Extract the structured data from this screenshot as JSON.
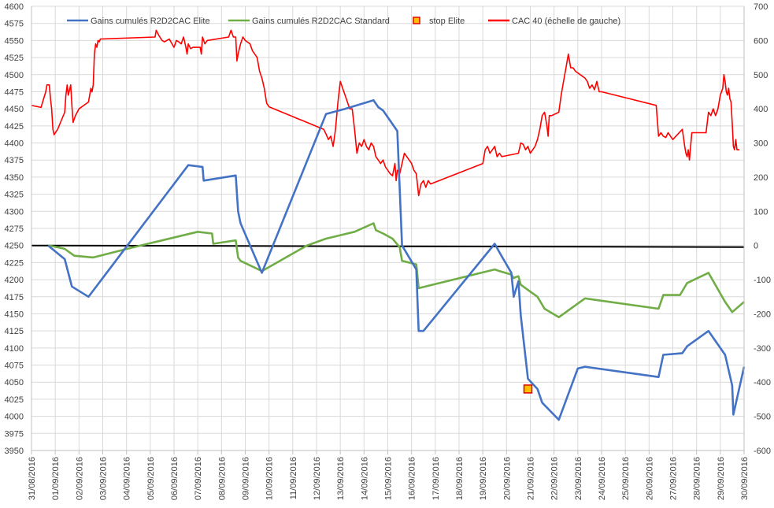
{
  "chart_data": {
    "type": "line",
    "title": "",
    "xlabel": "",
    "ylabel": "",
    "y_left": {
      "min": 3950,
      "max": 4600,
      "step": 25
    },
    "y_right": {
      "min": -600,
      "max": 700,
      "step": 100
    },
    "x_ticks": [
      "31/08/2016",
      "01/09/2016",
      "02/09/2016",
      "03/09/2016",
      "04/09/2016",
      "05/09/2016",
      "06/09/2016",
      "07/09/2016",
      "08/09/2016",
      "09/09/2016",
      "10/09/2016",
      "11/09/2016",
      "12/09/2016",
      "13/09/2016",
      "14/09/2016",
      "15/09/2016",
      "16/09/2016",
      "17/09/2016",
      "18/09/2016",
      "19/09/2016",
      "20/09/2016",
      "21/09/2016",
      "22/09/2016",
      "23/09/2016",
      "24/09/2016",
      "25/09/2016",
      "26/09/2016",
      "27/09/2016",
      "28/09/2016",
      "29/09/2016",
      "30/09/2016"
    ],
    "grid": true,
    "legend_position": "top",
    "legend": [
      {
        "label": "Gains cumulés R2D2CAC Elite",
        "color": "#4472c4",
        "kind": "line"
      },
      {
        "label": "Gains cumulés R2D2CAC Standard",
        "color": "#70ad47",
        "kind": "line"
      },
      {
        "label": "stop Elite",
        "color": "#ffc000",
        "edge": "#e00000",
        "kind": "marker"
      },
      {
        "label": "CAC 40 (échelle de gauche)",
        "color": "#ff0000",
        "kind": "line"
      }
    ],
    "series": [
      {
        "name": "Gains cumulés R2D2CAC Elite",
        "axis": "right",
        "color": "#4472c4",
        "points": [
          [
            0.7,
            0
          ],
          [
            1.4,
            -40
          ],
          [
            1.7,
            -120
          ],
          [
            2.4,
            -150
          ],
          [
            6.6,
            235
          ],
          [
            7.2,
            230
          ],
          [
            7.25,
            190
          ],
          [
            8.6,
            205
          ],
          [
            8.7,
            100
          ],
          [
            8.8,
            65
          ],
          [
            9.7,
            -80
          ],
          [
            12.4,
            385
          ],
          [
            13.2,
            400
          ],
          [
            14.4,
            425
          ],
          [
            14.6,
            405
          ],
          [
            14.8,
            395
          ],
          [
            15.4,
            335
          ],
          [
            15.6,
            0
          ],
          [
            16.2,
            -70
          ],
          [
            16.3,
            -250
          ],
          [
            16.5,
            -250
          ],
          [
            19.5,
            5
          ],
          [
            19.7,
            -20
          ],
          [
            20.2,
            -80
          ],
          [
            20.3,
            -150
          ],
          [
            20.5,
            -105
          ],
          [
            20.6,
            -205
          ],
          [
            20.9,
            -390
          ],
          [
            21.3,
            -420
          ],
          [
            21.5,
            -460
          ],
          [
            22.2,
            -510
          ],
          [
            23.0,
            -360
          ],
          [
            23.3,
            -355
          ],
          [
            26.4,
            -385
          ],
          [
            26.6,
            -320
          ],
          [
            27.4,
            -315
          ],
          [
            27.6,
            -295
          ],
          [
            28.5,
            -250
          ],
          [
            29.2,
            -320
          ],
          [
            29.5,
            -410
          ],
          [
            29.55,
            -495
          ],
          [
            30.0,
            -355
          ]
        ]
      },
      {
        "name": "Gains cumulés R2D2CAC Standard",
        "axis": "right",
        "color": "#70ad47",
        "points": [
          [
            0.7,
            0
          ],
          [
            1.1,
            -5
          ],
          [
            1.4,
            -10
          ],
          [
            1.8,
            -30
          ],
          [
            2.6,
            -35
          ],
          [
            4.3,
            -5
          ],
          [
            7.0,
            40
          ],
          [
            7.6,
            35
          ],
          [
            7.65,
            5
          ],
          [
            8.6,
            15
          ],
          [
            8.7,
            -35
          ],
          [
            8.8,
            -45
          ],
          [
            9.7,
            -75
          ],
          [
            11.6,
            0
          ],
          [
            12.4,
            20
          ],
          [
            13.3,
            35
          ],
          [
            13.6,
            40
          ],
          [
            14.4,
            65
          ],
          [
            14.5,
            45
          ],
          [
            14.8,
            35
          ],
          [
            15.2,
            20
          ],
          [
            15.5,
            -5
          ],
          [
            15.6,
            -45
          ],
          [
            16.2,
            -55
          ],
          [
            16.3,
            -125
          ],
          [
            19.5,
            -70
          ],
          [
            19.7,
            -75
          ],
          [
            20.2,
            -85
          ],
          [
            20.3,
            -95
          ],
          [
            20.5,
            -90
          ],
          [
            20.6,
            -115
          ],
          [
            21.3,
            -150
          ],
          [
            21.6,
            -185
          ],
          [
            22.2,
            -210
          ],
          [
            23.3,
            -155
          ],
          [
            26.4,
            -185
          ],
          [
            26.6,
            -145
          ],
          [
            27.3,
            -145
          ],
          [
            27.6,
            -110
          ],
          [
            28.5,
            -80
          ],
          [
            29.2,
            -165
          ],
          [
            29.5,
            -195
          ],
          [
            30.0,
            -165
          ]
        ]
      },
      {
        "name": "CAC 40 (échelle de gauche)",
        "axis": "left",
        "color": "#ff0000",
        "points": [
          [
            0.0,
            4455
          ],
          [
            0.4,
            4452
          ],
          [
            0.6,
            4475
          ],
          [
            0.65,
            4485
          ],
          [
            0.75,
            4485
          ],
          [
            0.8,
            4465
          ],
          [
            0.85,
            4450
          ],
          [
            0.9,
            4420
          ],
          [
            0.95,
            4412
          ],
          [
            1.1,
            4420
          ],
          [
            1.4,
            4445
          ],
          [
            1.45,
            4470
          ],
          [
            1.5,
            4485
          ],
          [
            1.55,
            4470
          ],
          [
            1.65,
            4485
          ],
          [
            1.7,
            4455
          ],
          [
            1.75,
            4430
          ],
          [
            1.85,
            4440
          ],
          [
            2.0,
            4450
          ],
          [
            2.4,
            4460
          ],
          [
            2.45,
            4470
          ],
          [
            2.5,
            4480
          ],
          [
            2.55,
            4475
          ],
          [
            2.6,
            4485
          ],
          [
            2.65,
            4530
          ],
          [
            2.7,
            4545
          ],
          [
            2.75,
            4540
          ],
          [
            2.8,
            4550
          ],
          [
            2.85,
            4548
          ],
          [
            2.9,
            4552
          ],
          [
            5.2,
            4555
          ],
          [
            5.25,
            4565
          ],
          [
            5.35,
            4558
          ],
          [
            5.5,
            4550
          ],
          [
            5.6,
            4548
          ],
          [
            5.8,
            4552
          ],
          [
            5.9,
            4546
          ],
          [
            6.0,
            4540
          ],
          [
            6.1,
            4550
          ],
          [
            6.2,
            4548
          ],
          [
            6.3,
            4545
          ],
          [
            6.4,
            4555
          ],
          [
            6.5,
            4540
          ],
          [
            6.55,
            4530
          ],
          [
            6.6,
            4545
          ],
          [
            6.7,
            4538
          ],
          [
            6.8,
            4540
          ],
          [
            7.1,
            4540
          ],
          [
            7.15,
            4530
          ],
          [
            7.2,
            4555
          ],
          [
            7.3,
            4545
          ],
          [
            7.4,
            4550
          ],
          [
            8.3,
            4555
          ],
          [
            8.4,
            4565
          ],
          [
            8.5,
            4555
          ],
          [
            8.6,
            4555
          ],
          [
            8.65,
            4520
          ],
          [
            8.7,
            4530
          ],
          [
            8.8,
            4545
          ],
          [
            8.9,
            4555
          ],
          [
            9.0,
            4550
          ],
          [
            9.2,
            4545
          ],
          [
            9.3,
            4535
          ],
          [
            9.5,
            4525
          ],
          [
            9.6,
            4505
          ],
          [
            9.7,
            4495
          ],
          [
            9.8,
            4480
          ],
          [
            9.9,
            4458
          ],
          [
            10.0,
            4453
          ],
          [
            12.3,
            4420
          ],
          [
            12.4,
            4413
          ],
          [
            12.5,
            4405
          ],
          [
            12.6,
            4410
          ],
          [
            12.7,
            4395
          ],
          [
            12.8,
            4420
          ],
          [
            12.9,
            4460
          ],
          [
            13.0,
            4490
          ],
          [
            13.1,
            4480
          ],
          [
            13.2,
            4470
          ],
          [
            13.3,
            4460
          ],
          [
            13.4,
            4450
          ],
          [
            13.5,
            4450
          ],
          [
            13.6,
            4420
          ],
          [
            13.7,
            4385
          ],
          [
            13.8,
            4400
          ],
          [
            13.9,
            4395
          ],
          [
            14.0,
            4405
          ],
          [
            14.1,
            4395
          ],
          [
            14.2,
            4390
          ],
          [
            14.3,
            4400
          ],
          [
            14.4,
            4395
          ],
          [
            14.5,
            4380
          ],
          [
            14.6,
            4375
          ],
          [
            14.7,
            4370
          ],
          [
            14.8,
            4375
          ],
          [
            14.9,
            4365
          ],
          [
            15.0,
            4360
          ],
          [
            15.1,
            4355
          ],
          [
            15.2,
            4352
          ],
          [
            15.3,
            4370
          ],
          [
            15.35,
            4345
          ],
          [
            15.4,
            4360
          ],
          [
            15.5,
            4355
          ],
          [
            15.6,
            4370
          ],
          [
            15.7,
            4385
          ],
          [
            15.8,
            4380
          ],
          [
            15.9,
            4375
          ],
          [
            16.0,
            4370
          ],
          [
            16.1,
            4360
          ],
          [
            16.2,
            4355
          ],
          [
            16.3,
            4323
          ],
          [
            16.4,
            4340
          ],
          [
            16.5,
            4345
          ],
          [
            16.6,
            4335
          ],
          [
            16.7,
            4345
          ],
          [
            16.8,
            4340
          ],
          [
            19.0,
            4370
          ],
          [
            19.1,
            4390
          ],
          [
            19.2,
            4395
          ],
          [
            19.3,
            4385
          ],
          [
            19.5,
            4395
          ],
          [
            19.6,
            4380
          ],
          [
            19.7,
            4385
          ],
          [
            19.8,
            4380
          ],
          [
            20.5,
            4385
          ],
          [
            20.6,
            4400
          ],
          [
            20.7,
            4398
          ],
          [
            20.8,
            4390
          ],
          [
            20.9,
            4395
          ],
          [
            21.0,
            4385
          ],
          [
            21.2,
            4395
          ],
          [
            21.3,
            4405
          ],
          [
            21.4,
            4420
          ],
          [
            21.5,
            4440
          ],
          [
            21.6,
            4445
          ],
          [
            21.7,
            4425
          ],
          [
            21.75,
            4410
          ],
          [
            21.8,
            4440
          ],
          [
            21.9,
            4440
          ],
          [
            22.2,
            4445
          ],
          [
            22.3,
            4470
          ],
          [
            22.4,
            4490
          ],
          [
            22.5,
            4510
          ],
          [
            22.6,
            4530
          ],
          [
            22.7,
            4510
          ],
          [
            22.8,
            4510
          ],
          [
            22.9,
            4505
          ],
          [
            23.1,
            4500
          ],
          [
            23.3,
            4495
          ],
          [
            23.4,
            4490
          ],
          [
            23.5,
            4480
          ],
          [
            23.6,
            4485
          ],
          [
            23.7,
            4478
          ],
          [
            23.8,
            4490
          ],
          [
            23.9,
            4475
          ],
          [
            24.0,
            4475
          ],
          [
            26.3,
            4455
          ],
          [
            26.4,
            4410
          ],
          [
            26.5,
            4415
          ],
          [
            26.6,
            4410
          ],
          [
            26.7,
            4408
          ],
          [
            26.8,
            4415
          ],
          [
            26.9,
            4410
          ],
          [
            27.0,
            4405
          ],
          [
            27.4,
            4420
          ],
          [
            27.5,
            4395
          ],
          [
            27.55,
            4385
          ],
          [
            27.6,
            4380
          ],
          [
            27.65,
            4390
          ],
          [
            27.7,
            4375
          ],
          [
            27.8,
            4415
          ],
          [
            28.4,
            4415
          ],
          [
            28.5,
            4445
          ],
          [
            28.6,
            4440
          ],
          [
            28.7,
            4450
          ],
          [
            28.8,
            4440
          ],
          [
            28.9,
            4450
          ],
          [
            29.0,
            4470
          ],
          [
            29.1,
            4480
          ],
          [
            29.15,
            4500
          ],
          [
            29.2,
            4490
          ],
          [
            29.25,
            4475
          ],
          [
            29.3,
            4470
          ],
          [
            29.35,
            4480
          ],
          [
            29.4,
            4465
          ],
          [
            29.45,
            4460
          ],
          [
            29.5,
            4430
          ],
          [
            29.55,
            4395
          ],
          [
            29.6,
            4390
          ],
          [
            29.65,
            4405
          ],
          [
            29.7,
            4390
          ],
          [
            29.8,
            4390
          ]
        ]
      }
    ],
    "markers": [
      {
        "name": "stop Elite",
        "x": 20.9,
        "y": -420,
        "axis": "right"
      }
    ],
    "reference_line": {
      "axis": "right",
      "y": 0,
      "color": "#000000"
    }
  }
}
